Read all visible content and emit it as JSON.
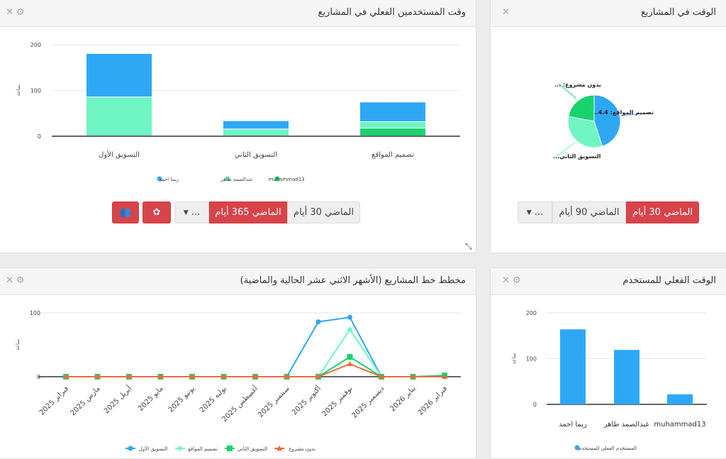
{
  "colors": {
    "blue": "#2ea8f5",
    "light_green": "#6ef5c3",
    "green": "#18d36d",
    "orange": "#ef6a3a",
    "red": "#d9434a"
  },
  "panel_user_projects": {
    "title": "وقت المستخدمين الفعلي في المشاريع",
    "buttons": {
      "last30": "الماضي 30 أيام",
      "last365": "الماضي 365 أيام",
      "more": "...",
      "icon1": "users-icon",
      "icon2": "circles-icon"
    }
  },
  "panel_time_projects": {
    "title": "الوقت في المشاريع",
    "buttons": {
      "last30": "الماضي 30 أيام",
      "last90": "الماضي 90 أيام",
      "more": "..."
    }
  },
  "panel_line": {
    "title": "مخطط خط المشاريع (الأشهر الاثني عشر الحالية والماضية)"
  },
  "panel_user_time": {
    "title": "الوقت الفعلي للمستخدم"
  },
  "chart_data": [
    {
      "type": "bar",
      "stacked": true,
      "ylabel": "ساعة",
      "ylim": [
        0,
        200
      ],
      "yticks": [
        "0",
        "100",
        "200"
      ],
      "categories": [
        "التسويق الأول",
        "التسويق الثاني",
        "تصميم المواقع"
      ],
      "series": [
        {
          "name": "muhammad13",
          "color": "#18d36d",
          "values": [
            0,
            0,
            17
          ]
        },
        {
          "name": "عبدالصمد طاهر",
          "color": "#6ef5c3",
          "values": [
            85,
            15,
            14
          ]
        },
        {
          "name": "ريما احمد",
          "color": "#2ea8f5",
          "values": [
            95,
            18,
            43
          ]
        }
      ],
      "legend": "bottom"
    },
    {
      "type": "pie",
      "slices": [
        {
          "label": "تصميم المواقع: 4.4...",
          "color": "#2ea8f5",
          "value": 45
        },
        {
          "label": "التسويق الثاني...",
          "color": "#6ef5c3",
          "value": 33
        },
        {
          "label": "بدون مشروع: ...",
          "color": "#18d36d",
          "value": 22
        }
      ]
    },
    {
      "type": "line",
      "ylabel": "ساعة",
      "ylim": [
        0,
        100
      ],
      "yticks": [
        "0",
        "100"
      ],
      "categories": [
        "فبراير 2025",
        "مارس 2025",
        "أبريل 2025",
        "مايو 2025",
        "يونيو 2025",
        "يوليه 2025",
        "أغسطس 2025",
        "سبتمبر 2025",
        "أكتوبر 2025",
        "نوفمبر 2025",
        "ديسمبر 2025",
        "يناير 2026",
        "فبراير 2026"
      ],
      "series": [
        {
          "name": "التسويق الأول",
          "color": "#2ea8f5",
          "marker": "circle",
          "values": [
            0,
            0,
            0,
            0,
            0,
            0,
            0,
            0,
            86,
            93,
            0,
            0,
            0
          ]
        },
        {
          "name": "تصميم المواقع",
          "color": "#6ef5c3",
          "marker": "diamond",
          "values": [
            0,
            0,
            0,
            0,
            0,
            0,
            0,
            0,
            0,
            74,
            0,
            0,
            0
          ]
        },
        {
          "name": "التسويق الثاني",
          "color": "#18d36d",
          "marker": "square",
          "values": [
            0,
            0,
            0,
            0,
            0,
            0,
            0,
            0,
            0,
            31,
            0,
            0,
            2
          ]
        },
        {
          "name": "بدون مشروع",
          "color": "#ef6a3a",
          "marker": "triangle",
          "values": [
            0,
            0,
            0,
            0,
            0,
            0,
            0,
            0,
            0,
            20,
            0,
            0,
            0
          ]
        }
      ],
      "legend": "bottom"
    },
    {
      "type": "bar",
      "ylabel": "ساعة",
      "ylim": [
        0,
        200
      ],
      "yticks": [
        "0",
        "100",
        "200"
      ],
      "categories": [
        "ريما احمد",
        "عبدالصمد طاهر",
        "muhammad13"
      ],
      "series": [
        {
          "name": "المستخدم الفعلي للمستخدم",
          "color": "#2ea8f5",
          "values": [
            164,
            119,
            22
          ]
        }
      ],
      "legend": "bottom"
    }
  ]
}
